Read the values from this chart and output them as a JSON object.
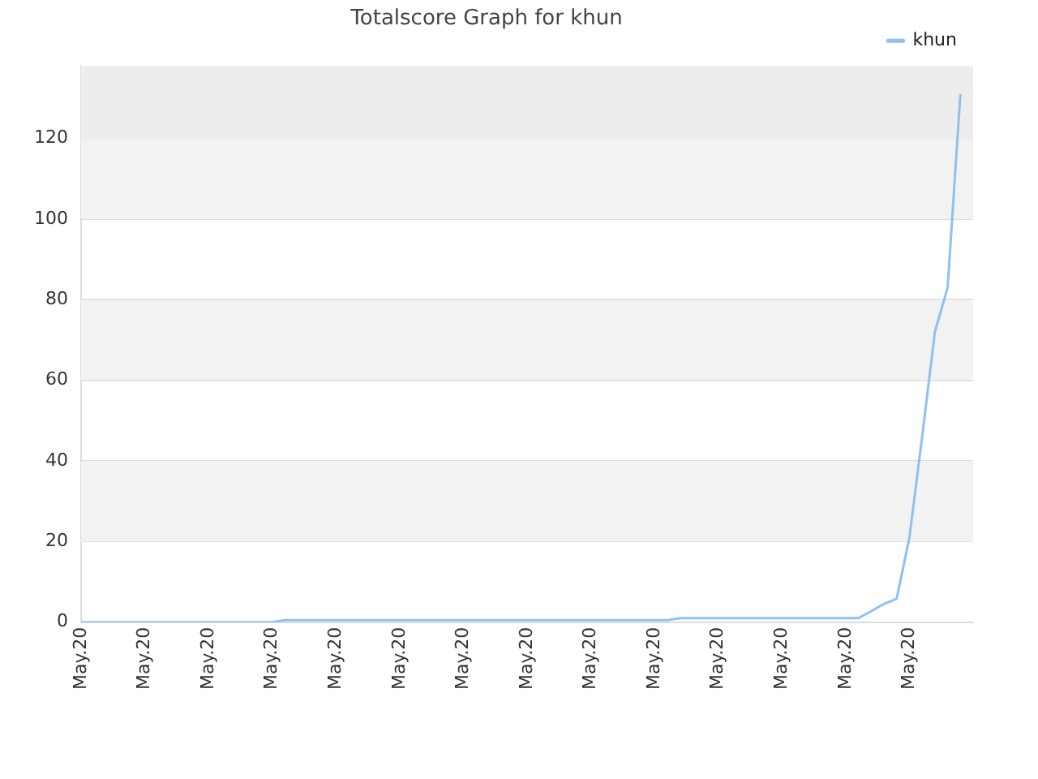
{
  "chart_data": {
    "type": "line",
    "title": "Totalscore Graph for khun",
    "categories": [
      "May.20",
      null,
      null,
      null,
      null,
      "May.20",
      null,
      null,
      null,
      null,
      "May.20",
      null,
      null,
      null,
      null,
      "May.20",
      null,
      null,
      null,
      null,
      "May.20",
      null,
      null,
      null,
      null,
      "May.20",
      null,
      null,
      null,
      null,
      "May.20",
      null,
      null,
      null,
      null,
      "May.20",
      null,
      null,
      null,
      null,
      "May.20",
      null,
      null,
      null,
      null,
      "May.20",
      null,
      null,
      null,
      null,
      "May.20",
      null,
      null,
      null,
      null,
      "May.20",
      null,
      null,
      null,
      null,
      "May.20",
      null,
      null,
      null,
      null,
      "May.20",
      null,
      null,
      null,
      null,
      null
    ],
    "series": [
      {
        "name": "khun",
        "color": "#90c0f0",
        "values": [
          0,
          0,
          0,
          0,
          0,
          0,
          0,
          0,
          0,
          0,
          0,
          0,
          0,
          0,
          0,
          0,
          0.5,
          0.5,
          0.5,
          0.5,
          0.5,
          0.5,
          0.5,
          0.5,
          0.5,
          0.5,
          0.5,
          0.5,
          0.5,
          0.5,
          0.5,
          0.5,
          0.5,
          0.5,
          0.5,
          0.5,
          0.5,
          0.5,
          0.5,
          0.5,
          0.5,
          0.5,
          0.5,
          0.5,
          0.5,
          0.5,
          0.5,
          1,
          1,
          1,
          1,
          1,
          1,
          1,
          1,
          1,
          1,
          1,
          1,
          1,
          1,
          1,
          2.7,
          4.5,
          5.8,
          21,
          46,
          72,
          83,
          131,
          null
        ]
      }
    ],
    "ylim": [
      0,
      138
    ],
    "yticks": [
      0,
      20,
      40,
      60,
      80,
      100,
      120
    ],
    "bands": [
      {
        "axis": "y",
        "from": 20,
        "to": 40,
        "color": "#f2f2f2"
      },
      {
        "axis": "y",
        "from": 60,
        "to": 80,
        "color": "#f2f2f2"
      },
      {
        "axis": "y",
        "from": 100,
        "to": 120,
        "color": "#f2f2f2"
      },
      {
        "axis": "y",
        "from": 120,
        "to": 138,
        "color": "#ededed"
      }
    ],
    "grid": "y",
    "legend": "top right",
    "marker": "none",
    "line_style": "solid"
  }
}
